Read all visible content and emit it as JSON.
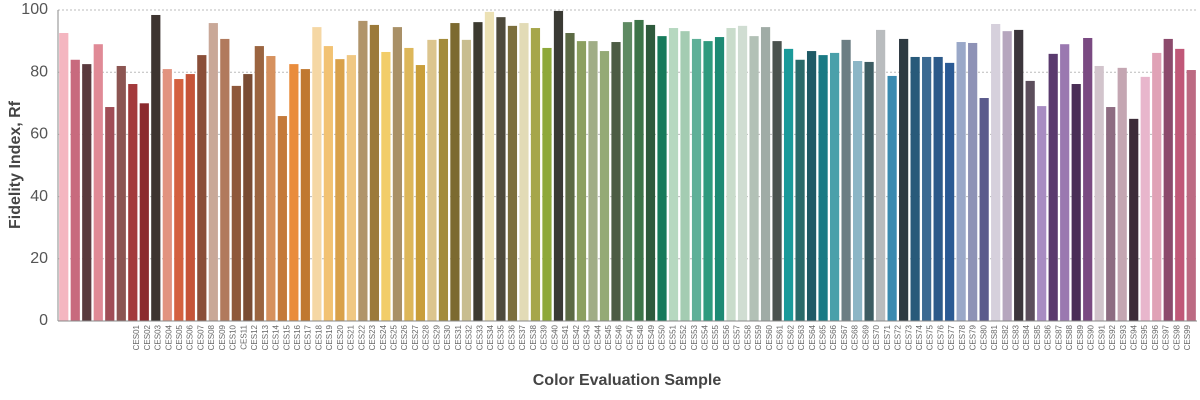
{
  "chart_data": {
    "type": "bar",
    "x_label": "Color Evaluation Sample",
    "y_label": "Fidelity Index, Rf",
    "categories": [
      "CES01",
      "CES02",
      "CES03",
      "CES04",
      "CES05",
      "CES06",
      "CES07",
      "CES08",
      "CES09",
      "CES10",
      "CES11",
      "CES12",
      "CES13",
      "CES14",
      "CES15",
      "CES16",
      "CES17",
      "CES18",
      "CES19",
      "CES20",
      "CES21",
      "CES22",
      "CES23",
      "CES24",
      "CES25",
      "CES26",
      "CES27",
      "CES28",
      "CES29",
      "CES30",
      "CES31",
      "CES32",
      "CES33",
      "CES34",
      "CES35",
      "CES36",
      "CES37",
      "CES38",
      "CES39",
      "CES40",
      "CES41",
      "CES42",
      "CES43",
      "CES44",
      "CES45",
      "CES46",
      "CES47",
      "CES48",
      "CES49",
      "CES50",
      "CES51",
      "CES52",
      "CES53",
      "CES54",
      "CES55",
      "CES56",
      "CES57",
      "CES58",
      "CES59",
      "CES60",
      "CES61",
      "CES62",
      "CES63",
      "CES64",
      "CES65",
      "CES66",
      "CES67",
      "CES68",
      "CES69",
      "CES70",
      "CES71",
      "CES72",
      "CES73",
      "CES74",
      "CES75",
      "CES76",
      "CES77",
      "CES78",
      "CES79",
      "CES80",
      "CES81",
      "CES82",
      "CES83",
      "CES84",
      "CES85",
      "CES86",
      "CES87",
      "CES88",
      "CES89",
      "CES90",
      "CES91",
      "CES92",
      "CES93",
      "CES94",
      "CES95",
      "CES96",
      "CES97",
      "CES98",
      "CES99"
    ],
    "values": [
      92.6,
      84,
      82.6,
      89,
      68.8,
      82,
      76.2,
      70,
      98.4,
      81,
      77.8,
      79.4,
      85.5,
      95.8,
      90.7,
      75.6,
      79.4,
      88.4,
      85.2,
      65.9,
      82.6,
      81,
      94.5,
      88.4,
      84.2,
      85.5,
      96.5,
      95.2,
      86.5,
      94.5,
      87.8,
      82.3,
      90.4,
      90.7,
      95.8,
      90.4,
      96.1,
      99.4,
      97.7,
      94.9,
      95.8,
      94.2,
      87.8,
      99.7,
      92.6,
      90,
      90,
      86.8,
      89.7,
      96.1,
      96.8,
      95.2,
      91.6,
      94.2,
      93.2,
      90.7,
      90,
      91.3,
      94.2,
      94.9,
      91.6,
      94.5,
      90,
      87.5,
      84,
      86.8,
      85.5,
      86.2,
      90.4,
      83.6,
      83.3,
      93.6,
      78.8,
      90.7,
      84.9,
      84.9,
      84.9,
      83,
      89.7,
      89.4,
      71.7,
      95.5,
      93.2,
      93.6,
      77.2,
      69.1,
      85.9,
      89,
      76.2,
      91,
      82,
      68.8,
      81.4,
      65,
      78.5,
      86.2,
      90.7,
      87.5,
      80.7
    ],
    "colors": [
      "#f4b6c0",
      "#c86a7e",
      "#5a3a3e",
      "#e08a96",
      "#a04d56",
      "#8c5552",
      "#a33a3c",
      "#8b2a2e",
      "#3d3430",
      "#e2937f",
      "#d4613f",
      "#c65438",
      "#8a4e38",
      "#c9a898",
      "#b17a5d",
      "#8e583b",
      "#7a4c34",
      "#9b6440",
      "#d6915e",
      "#c47a3a",
      "#e98c3c",
      "#c0782f",
      "#f5d7a4",
      "#f2c273",
      "#d9a14a",
      "#f0c883",
      "#b0946a",
      "#9c7a3a",
      "#f2cd6a",
      "#a99067",
      "#ddb75a",
      "#c99e3a",
      "#dcc58e",
      "#a48c3c",
      "#7c6a30",
      "#c8bd8f",
      "#3c3a30",
      "#ece1b4",
      "#4e4a3c",
      "#7c6f3c",
      "#e2dbb6",
      "#a6a64a",
      "#8ea83a",
      "#3a3a34",
      "#5c6a44",
      "#8ca060",
      "#a0ad86",
      "#94aa76",
      "#4c5c44",
      "#5e8a62",
      "#3c7448",
      "#2e5a3c",
      "#157a5a",
      "#b6d8c0",
      "#a4ccb2",
      "#5eb098",
      "#2e9a7e",
      "#1d8a74",
      "#c9dccb",
      "#d0ddd2",
      "#b2c1b6",
      "#a0aca6",
      "#4a524e",
      "#1b9a9a",
      "#2a6a6a",
      "#1f5a66",
      "#1a7a84",
      "#4aa0aa",
      "#6c7e84",
      "#8cb6c6",
      "#3c5c62",
      "#b9bcbe",
      "#3a8ab0",
      "#2e3a42",
      "#285a7a",
      "#3c6a92",
      "#2c5a8a",
      "#2a5a94",
      "#9aa8c8",
      "#8e92b6",
      "#5a5a8c",
      "#d6d0dc",
      "#b6a6be",
      "#3c363c",
      "#5c4e5c",
      "#a88cc2",
      "#5a3a6e",
      "#9a78b0",
      "#4a2e56",
      "#7a4a82",
      "#d2c4cc",
      "#8e6c82",
      "#c4a6b2",
      "#3c2c38",
      "#e8b6cc",
      "#e0a2b6",
      "#8c4a6c",
      "#c05878",
      "#bc6a82"
    ],
    "ylim": [
      0,
      100
    ],
    "yticks": [
      0,
      20,
      40,
      60,
      80,
      100
    ],
    "grid": true
  }
}
